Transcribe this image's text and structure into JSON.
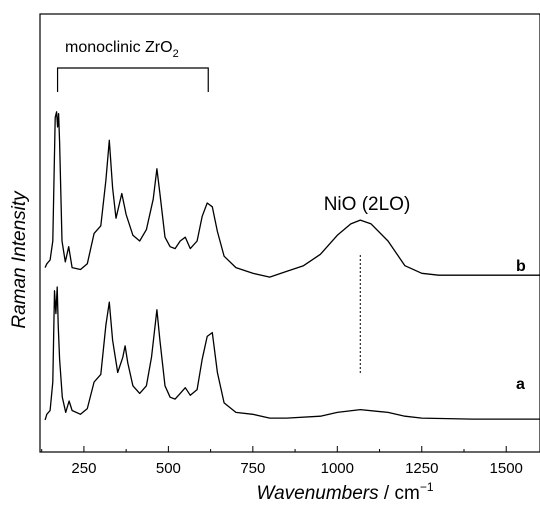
{
  "chart_data": {
    "type": "line",
    "title": "",
    "xlabel": "Wavenumbers",
    "xlabel_unit": " / cm",
    "xlabel_unit_sup": "−1",
    "ylabel": "Raman Intensity",
    "xlim": [
      120,
      1600
    ],
    "x_ticks": [
      250,
      500,
      750,
      1000,
      1250,
      1500
    ],
    "x_tick_labels": [
      "250",
      "500",
      "750",
      "1000",
      "1250",
      "1500"
    ],
    "y_ticks_shown": false,
    "grid": false,
    "annotations": {
      "zro2_bracket": {
        "text": "monoclinic ZrO",
        "sub": "2",
        "from": 172,
        "to": 618
      },
      "nio_peak": {
        "text": "NiO (2LO)",
        "position": 1068
      }
    },
    "series": [
      {
        "name": "b",
        "color": "#000000",
        "points": [
          [
            135,
            0.16
          ],
          [
            140,
            0.18
          ],
          [
            150,
            0.2
          ],
          [
            158,
            0.3
          ],
          [
            165,
            0.95
          ],
          [
            169,
            0.98
          ],
          [
            172,
            0.9
          ],
          [
            175,
            0.97
          ],
          [
            178,
            0.82
          ],
          [
            185,
            0.3
          ],
          [
            195,
            0.19
          ],
          [
            205,
            0.27
          ],
          [
            215,
            0.16
          ],
          [
            240,
            0.15
          ],
          [
            260,
            0.18
          ],
          [
            280,
            0.34
          ],
          [
            300,
            0.38
          ],
          [
            315,
            0.62
          ],
          [
            325,
            0.83
          ],
          [
            335,
            0.58
          ],
          [
            345,
            0.42
          ],
          [
            362,
            0.55
          ],
          [
            375,
            0.44
          ],
          [
            395,
            0.33
          ],
          [
            415,
            0.3
          ],
          [
            435,
            0.36
          ],
          [
            455,
            0.52
          ],
          [
            466,
            0.68
          ],
          [
            475,
            0.55
          ],
          [
            490,
            0.32
          ],
          [
            505,
            0.27
          ],
          [
            520,
            0.26
          ],
          [
            535,
            0.3
          ],
          [
            550,
            0.32
          ],
          [
            565,
            0.26
          ],
          [
            585,
            0.3
          ],
          [
            600,
            0.43
          ],
          [
            615,
            0.5
          ],
          [
            630,
            0.48
          ],
          [
            645,
            0.35
          ],
          [
            665,
            0.22
          ],
          [
            700,
            0.16
          ],
          [
            750,
            0.13
          ],
          [
            800,
            0.11
          ],
          [
            850,
            0.14
          ],
          [
            900,
            0.17
          ],
          [
            950,
            0.23
          ],
          [
            1000,
            0.33
          ],
          [
            1040,
            0.39
          ],
          [
            1068,
            0.41
          ],
          [
            1100,
            0.39
          ],
          [
            1150,
            0.3
          ],
          [
            1200,
            0.17
          ],
          [
            1250,
            0.13
          ],
          [
            1300,
            0.12
          ],
          [
            1400,
            0.12
          ],
          [
            1500,
            0.12
          ],
          [
            1600,
            0.12
          ]
        ]
      },
      {
        "name": "a",
        "color": "#000000",
        "points": [
          [
            135,
            0.0
          ],
          [
            140,
            0.03
          ],
          [
            150,
            0.05
          ],
          [
            158,
            0.2
          ],
          [
            163,
            0.68
          ],
          [
            167,
            0.56
          ],
          [
            171,
            0.7
          ],
          [
            174,
            0.5
          ],
          [
            178,
            0.32
          ],
          [
            186,
            0.12
          ],
          [
            196,
            0.04
          ],
          [
            206,
            0.1
          ],
          [
            215,
            0.05
          ],
          [
            240,
            0.03
          ],
          [
            260,
            0.06
          ],
          [
            280,
            0.2
          ],
          [
            300,
            0.24
          ],
          [
            315,
            0.5
          ],
          [
            325,
            0.62
          ],
          [
            335,
            0.42
          ],
          [
            350,
            0.25
          ],
          [
            365,
            0.33
          ],
          [
            372,
            0.39
          ],
          [
            380,
            0.3
          ],
          [
            395,
            0.18
          ],
          [
            415,
            0.14
          ],
          [
            435,
            0.18
          ],
          [
            450,
            0.33
          ],
          [
            466,
            0.58
          ],
          [
            475,
            0.42
          ],
          [
            490,
            0.18
          ],
          [
            505,
            0.12
          ],
          [
            520,
            0.11
          ],
          [
            535,
            0.14
          ],
          [
            550,
            0.17
          ],
          [
            565,
            0.13
          ],
          [
            585,
            0.16
          ],
          [
            600,
            0.32
          ],
          [
            615,
            0.44
          ],
          [
            630,
            0.46
          ],
          [
            645,
            0.25
          ],
          [
            665,
            0.09
          ],
          [
            700,
            0.04
          ],
          [
            750,
            0.03
          ],
          [
            800,
            0.01
          ],
          [
            850,
            0.01
          ],
          [
            950,
            0.02
          ],
          [
            1000,
            0.04
          ],
          [
            1068,
            0.055
          ],
          [
            1150,
            0.04
          ],
          [
            1200,
            0.02
          ],
          [
            1250,
            0.01
          ],
          [
            1400,
            0.005
          ],
          [
            1600,
            0.005
          ]
        ]
      }
    ]
  }
}
